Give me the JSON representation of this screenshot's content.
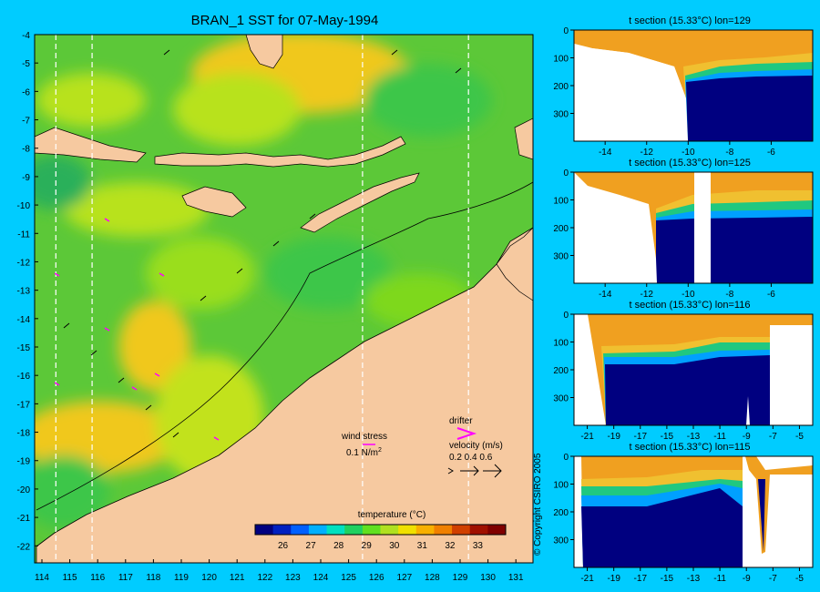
{
  "title": "BRAN_1 SST for 07-May-1994",
  "map": {
    "lat_ticks": [
      "-4",
      "-5",
      "-6",
      "-7",
      "-8",
      "-9",
      "-10",
      "-11",
      "-12",
      "-13",
      "-14",
      "-15",
      "-16",
      "-17",
      "-18",
      "-19",
      "-20",
      "-21",
      "-22"
    ],
    "lon_ticks": [
      "114",
      "115",
      "116",
      "117",
      "118",
      "119",
      "120",
      "121",
      "122",
      "123",
      "124",
      "125",
      "126",
      "127",
      "128",
      "129",
      "130",
      "131"
    ],
    "section_lines_lon": [
      114.5,
      115.8,
      125.5,
      129.3
    ],
    "land_color": "#f6c9a0",
    "sea_colors": [
      "#3cc64a",
      "#7ed81e",
      "#c2e21a",
      "#f0c81e"
    ]
  },
  "legend": {
    "wind_label": "wind stress",
    "wind_value": "0.1 N/m",
    "wind_unit_sup": "2",
    "drifter_label": "drifter",
    "velocity_label": "velocity (m/s)",
    "velocity_values": "0.2 0.4 0.6"
  },
  "colorbar": {
    "label": "temperature (°C)",
    "ticks": [
      "26",
      "27",
      "28",
      "29",
      "30",
      "31",
      "32",
      "33"
    ],
    "range": [
      25,
      34
    ],
    "colors": [
      "#000080",
      "#0020c0",
      "#0060ff",
      "#00b0ff",
      "#00e0c0",
      "#20d060",
      "#60e020",
      "#b0e020",
      "#f0e000",
      "#f8b000",
      "#f08000",
      "#d04000",
      "#a01000",
      "#800000"
    ]
  },
  "sections": [
    {
      "title": "t section (15.33°C) lon=129",
      "x_ticks": [
        "-14",
        "-12",
        "-10",
        "-8",
        "-6"
      ],
      "y_ticks": [
        "0",
        "100",
        "200",
        "300"
      ],
      "xlim": [
        -15.5,
        -4
      ],
      "ylim": [
        0,
        400
      ]
    },
    {
      "title": "t section (15.33°C) lon=125",
      "x_ticks": [
        "-14",
        "-12",
        "-10",
        "-8",
        "-6"
      ],
      "y_ticks": [
        "0",
        "100",
        "200",
        "300"
      ],
      "xlim": [
        -15.5,
        -4
      ],
      "ylim": [
        0,
        400
      ]
    },
    {
      "title": "t section (15.33°C) lon=116",
      "x_ticks": [
        "-21",
        "-19",
        "-17",
        "-15",
        "-13",
        "-11",
        "-9",
        "-7",
        "-5"
      ],
      "y_ticks": [
        "0",
        "100",
        "200",
        "300"
      ],
      "xlim": [
        -22,
        -4
      ],
      "ylim": [
        0,
        400
      ]
    },
    {
      "title": "t section (15.33°C) lon=115",
      "x_ticks": [
        "-21",
        "-19",
        "-17",
        "-15",
        "-13",
        "-11",
        "-9",
        "-7",
        "-5"
      ],
      "y_ticks": [
        "0",
        "100",
        "200",
        "300"
      ],
      "xlim": [
        -22,
        -4
      ],
      "ylim": [
        0,
        400
      ]
    }
  ],
  "copyright": "© Copyright CSIRO 2005"
}
